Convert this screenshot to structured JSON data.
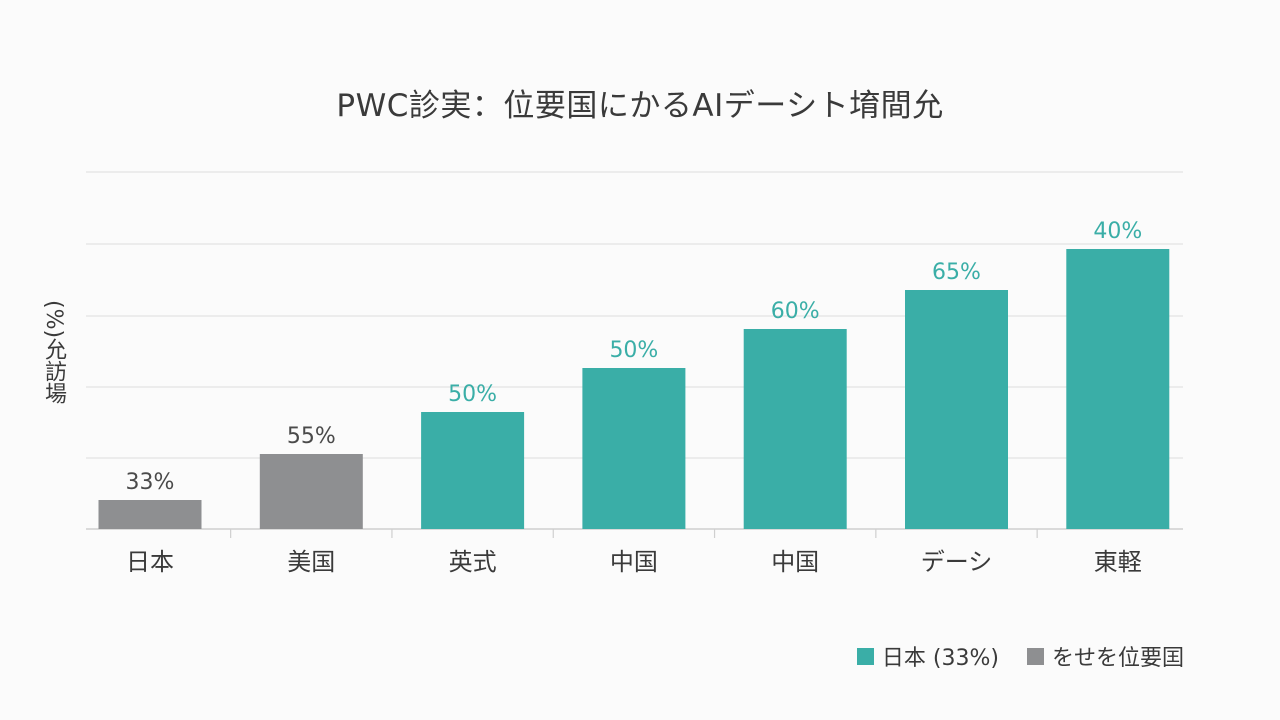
{
  "chart_data": {
    "type": "bar",
    "title": "PWC診実：位要国にかるAIデーシト堉間允",
    "ylabel": "(%)允訪場",
    "categories": [
      "日本",
      "美国",
      "英式",
      "中国",
      "中国",
      "デーシ",
      "東軽"
    ],
    "values": [
      33,
      55,
      50,
      50,
      60,
      65,
      40
    ],
    "data_labels": [
      "33%",
      "55%",
      "50%",
      "50%",
      "60%",
      "65%",
      "40%"
    ],
    "bar_groups": [
      "other",
      "other",
      "teal",
      "teal",
      "teal",
      "teal",
      "teal"
    ],
    "grid": true,
    "legend_position": "bottom-right",
    "legend": [
      {
        "label": "日本 (33%)",
        "color": "#3aaea7"
      },
      {
        "label": "をせを位要囯",
        "color": "#8e8f91"
      }
    ],
    "colors": {
      "teal": "#3aaea7",
      "other": "#8e8f91",
      "teal_label": "#3aaea7",
      "other_label": "#4a4a4a"
    }
  }
}
